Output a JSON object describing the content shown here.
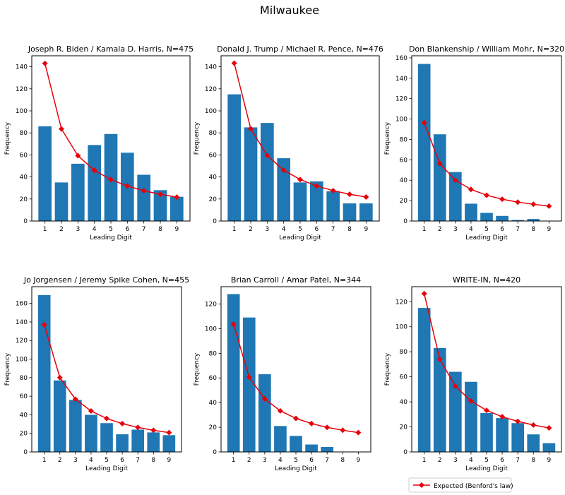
{
  "figure": {
    "suptitle": "Milwaukee",
    "legend": {
      "label": "Expected (Benford's law)",
      "color": "#e8000b",
      "placement": "bottom-right"
    },
    "colors": {
      "bar": "#1f77b4",
      "expected": "#e8000b"
    }
  },
  "chart_data": [
    {
      "type": "bar",
      "title": "Joseph R. Biden / Kamala D. Harris, N=475",
      "xlabel": "Leading Digit",
      "ylabel": "Frequency",
      "categories": [
        "1",
        "2",
        "3",
        "4",
        "5",
        "6",
        "7",
        "8",
        "9"
      ],
      "values": [
        86,
        35,
        52,
        69,
        79,
        62,
        42,
        28,
        22
      ],
      "expected": [
        143,
        83.6,
        59.3,
        46,
        37.6,
        31.8,
        27.5,
        24.3,
        21.7
      ],
      "ylim": [
        0,
        150
      ],
      "yticks": [
        0,
        20,
        40,
        60,
        80,
        100,
        120,
        140
      ]
    },
    {
      "type": "bar",
      "title": "Donald J. Trump / Michael R. Pence, N=476",
      "xlabel": "Leading Digit",
      "ylabel": "Frequency",
      "categories": [
        "1",
        "2",
        "3",
        "4",
        "5",
        "6",
        "7",
        "8",
        "9"
      ],
      "values": [
        115,
        85,
        89,
        57,
        35,
        36,
        27,
        16,
        16
      ],
      "expected": [
        143.3,
        83.8,
        59.5,
        46.1,
        37.7,
        31.8,
        27.6,
        24.3,
        21.8
      ],
      "ylim": [
        0,
        150
      ],
      "yticks": [
        0,
        20,
        40,
        60,
        80,
        100,
        120,
        140
      ]
    },
    {
      "type": "bar",
      "title": "Don Blankenship / William Mohr, N=320",
      "xlabel": "Leading Digit",
      "ylabel": "Frequency",
      "categories": [
        "1",
        "2",
        "3",
        "4",
        "5",
        "6",
        "7",
        "8",
        "9"
      ],
      "values": [
        154,
        85,
        48,
        17,
        8,
        5,
        1,
        2,
        0
      ],
      "expected": [
        96.3,
        56.3,
        40,
        31,
        25.3,
        21.4,
        18.5,
        16.4,
        14.6
      ],
      "ylim": [
        0,
        162
      ],
      "yticks": [
        0,
        20,
        40,
        60,
        80,
        100,
        120,
        140,
        160
      ]
    },
    {
      "type": "bar",
      "title": "Jo Jorgensen / Jeremy Spike Cohen, N=455",
      "xlabel": "Leading Digit",
      "ylabel": "Frequency",
      "categories": [
        "1",
        "2",
        "3",
        "4",
        "5",
        "6",
        "7",
        "8",
        "9"
      ],
      "values": [
        169,
        77,
        56,
        40,
        31,
        19,
        24,
        21,
        18
      ],
      "expected": [
        137,
        80.1,
        56.8,
        44.1,
        36,
        30.5,
        26.4,
        23.3,
        20.8
      ],
      "ylim": [
        0,
        178
      ],
      "yticks": [
        0,
        20,
        40,
        60,
        80,
        100,
        120,
        140,
        160
      ]
    },
    {
      "type": "bar",
      "title": "Brian Carroll / Amar Patel, N=344",
      "xlabel": "Leading Digit",
      "ylabel": "Frequency",
      "categories": [
        "1",
        "2",
        "3",
        "4",
        "5",
        "6",
        "7",
        "8",
        "9"
      ],
      "values": [
        128,
        109,
        63,
        21,
        13,
        6,
        4,
        0,
        0
      ],
      "expected": [
        103.6,
        60.6,
        43,
        33.3,
        27.2,
        23,
        19.9,
        17.6,
        15.7
      ],
      "ylim": [
        0,
        134
      ],
      "yticks": [
        0,
        20,
        40,
        60,
        80,
        100,
        120
      ]
    },
    {
      "type": "bar",
      "title": "WRITE-IN, N=420",
      "xlabel": "Leading Digit",
      "ylabel": "Frequency",
      "categories": [
        "1",
        "2",
        "3",
        "4",
        "5",
        "6",
        "7",
        "8",
        "9"
      ],
      "values": [
        115,
        83,
        64,
        56,
        31,
        27,
        23,
        14,
        7
      ],
      "expected": [
        126.4,
        73.9,
        52.5,
        40.7,
        33.2,
        28.1,
        24.4,
        21.5,
        19.2
      ],
      "ylim": [
        0,
        132
      ],
      "yticks": [
        0,
        20,
        40,
        60,
        80,
        100,
        120
      ]
    }
  ]
}
